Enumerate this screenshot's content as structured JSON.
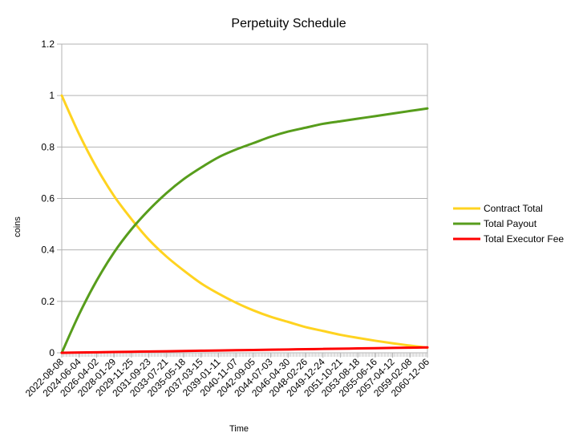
{
  "chart_data": {
    "type": "line",
    "title": "Perpetuity Schedule",
    "xlabel": "Time",
    "ylabel": "coins",
    "ylim": [
      0,
      1.2
    ],
    "yticks": [
      "0",
      "0.2",
      "0.4",
      "0.6",
      "0.8",
      "1",
      "1.2"
    ],
    "grid": "horizontal",
    "legend_position": "right",
    "x": [
      "2022-08-08",
      "2024-06-04",
      "2026-04-02",
      "2028-01-29",
      "2029-11-25",
      "2031-09-23",
      "2033-07-21",
      "2035-05-18",
      "2037-03-15",
      "2039-01-11",
      "2040-11-07",
      "2042-09-05",
      "2044-07-03",
      "2046-04-30",
      "2048-02-26",
      "2049-12-24",
      "2051-10-21",
      "2053-08-18",
      "2055-06-16",
      "2057-04-12",
      "2059-02-08",
      "2060-12-06"
    ],
    "series": [
      {
        "name": "Contract Total",
        "color": "#ffd320",
        "values": [
          1.0,
          0.85,
          0.72,
          0.61,
          0.52,
          0.44,
          0.375,
          0.32,
          0.27,
          0.23,
          0.195,
          0.165,
          0.14,
          0.12,
          0.1,
          0.085,
          0.07,
          0.058,
          0.047,
          0.037,
          0.028,
          0.02
        ]
      },
      {
        "name": "Total Payout",
        "color": "#579d1c",
        "values": [
          0.0,
          0.15,
          0.28,
          0.39,
          0.48,
          0.555,
          0.62,
          0.675,
          0.72,
          0.76,
          0.79,
          0.815,
          0.84,
          0.86,
          0.875,
          0.89,
          0.9,
          0.91,
          0.92,
          0.93,
          0.94,
          0.95
        ]
      },
      {
        "name": "Total Executor Fee",
        "color": "#ff0000",
        "values": [
          0.0,
          0.001,
          0.002,
          0.003,
          0.004,
          0.005,
          0.006,
          0.007,
          0.008,
          0.009,
          0.01,
          0.011,
          0.012,
          0.013,
          0.014,
          0.015,
          0.016,
          0.017,
          0.018,
          0.019,
          0.02,
          0.021
        ]
      }
    ]
  }
}
